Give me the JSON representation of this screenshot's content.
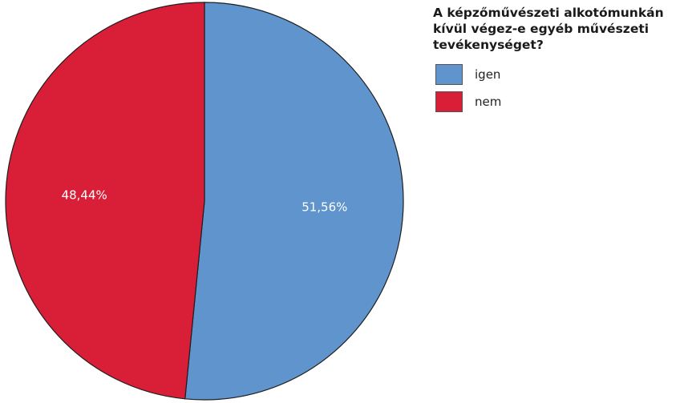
{
  "chart_data": {
    "type": "pie",
    "title": "A képzőművészeti alkotómunkán\nkívül végez-e egyéb művészeti\ntevékenységet?",
    "series": [
      {
        "categories": [
          "igen",
          "nem"
        ],
        "values": [
          51.56,
          48.44
        ],
        "value_labels": [
          "51,56%",
          "48,44%"
        ]
      }
    ],
    "colors": [
      "#5f94cd",
      "#d81f37"
    ],
    "legend_position": "right",
    "start_angle": "top, clockwise"
  }
}
